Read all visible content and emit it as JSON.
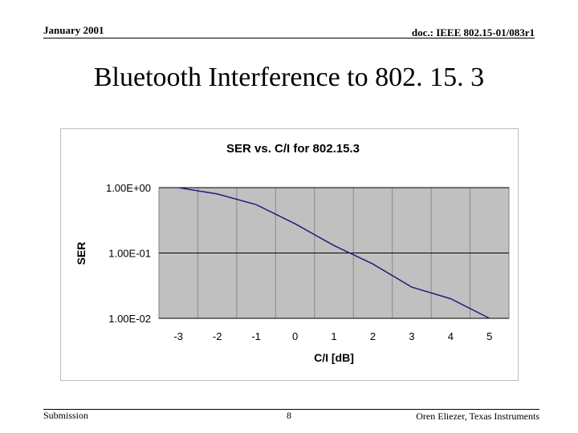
{
  "header": {
    "date": "January 2001",
    "doc_id": "doc.: IEEE 802.15-01/083r1"
  },
  "slide": {
    "title": "Bluetooth Interference to 802. 15. 3"
  },
  "footer": {
    "left": "Submission",
    "page_number": "8",
    "author": "Oren Eliezer, Texas Instruments"
  },
  "colors": {
    "plot_background": "#c0c0c0",
    "grid": "#8a8a8a",
    "series_line": "#1f1f7a"
  },
  "chart_data": {
    "type": "line",
    "title": "SER vs. C/I for 802.15.3",
    "xlabel": "C/I [dB]",
    "ylabel": "SER",
    "x": [
      -3,
      -2,
      -1,
      0,
      1,
      2,
      3,
      4,
      5
    ],
    "x_tick_labels": [
      "-3",
      "-2",
      "-1",
      "0",
      "1",
      "2",
      "3",
      "4",
      "5"
    ],
    "y_scale": "log",
    "ylim": [
      0.01,
      1.0
    ],
    "y_tick_values": [
      1.0,
      0.1,
      0.01
    ],
    "y_tick_labels": [
      "1.00E+00",
      "1.00E-01",
      "1.00E-02"
    ],
    "grid": true,
    "legend": "none",
    "series": [
      {
        "values": [
          1.0,
          0.8,
          0.55,
          0.28,
          0.13,
          0.068,
          0.03,
          0.02,
          0.01
        ]
      }
    ]
  }
}
